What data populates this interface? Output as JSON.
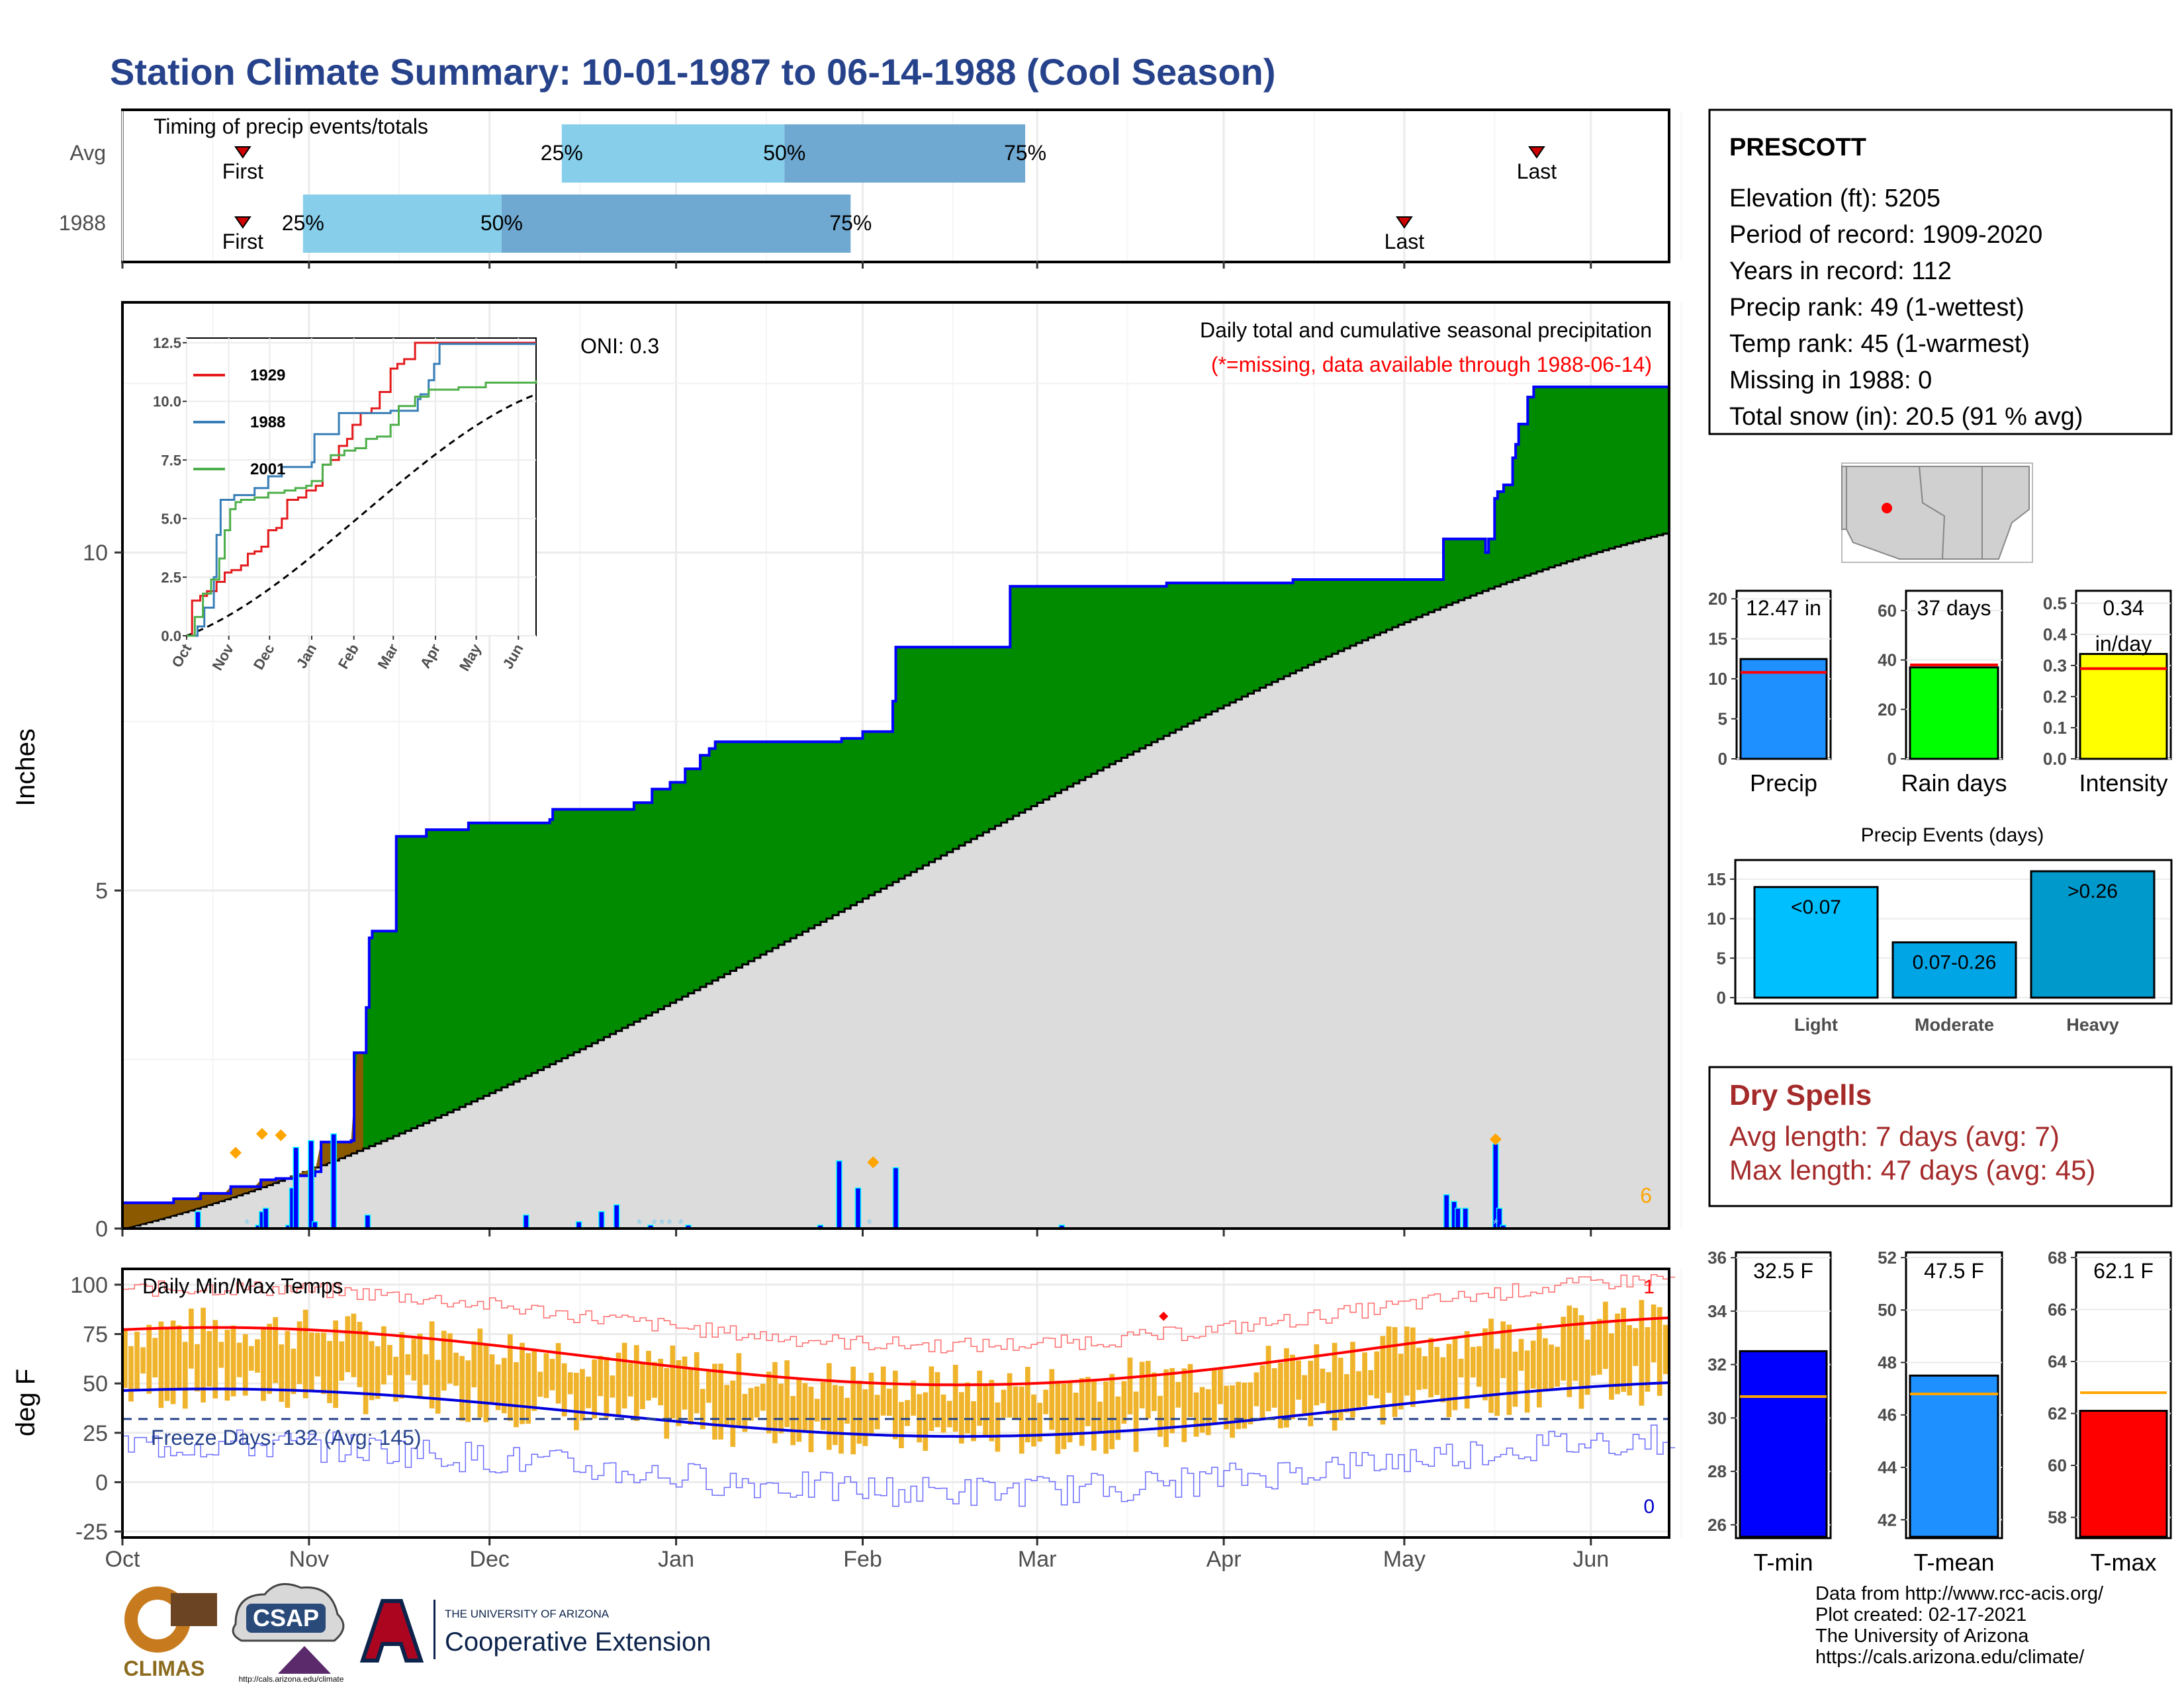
{
  "page": {
    "title": "Station Climate Summary: 10-01-1987 to 06-14-1988 (Cool Season)"
  },
  "colors": {
    "title": "#26428b",
    "green": "#008b00",
    "brown": "#8b5a00",
    "gray": "#dcdcdc",
    "blue": "#0000ff",
    "orange": "#ffa500",
    "gold": "#f0b42c",
    "red": "#ff0000",
    "darkred": "#a52a2a",
    "light_blue": "#87ceeb",
    "mid_blue": "#6fa8d0"
  },
  "month_labels": [
    "Oct",
    "Nov",
    "Dec",
    "Jan",
    "Feb",
    "Mar",
    "Apr",
    "May",
    "Jun"
  ],
  "timing": {
    "title": "Timing of precip events/totals",
    "rows": [
      {
        "label": "Avg",
        "first_label": "First",
        "last_label": "Last",
        "first_day": 20,
        "last_day": 235,
        "p25_day": 73,
        "p50_day": 110,
        "p75_day": 150,
        "p25_label": "25%",
        "p50_label": "50%",
        "p75_label": "75%"
      },
      {
        "label": "1988",
        "first_label": "First",
        "last_label": "Last",
        "first_day": 20,
        "last_day": 213,
        "p25_day": 30,
        "p50_day": 63,
        "p75_day": 121,
        "p25_label": "25%",
        "p50_label": "50%",
        "p75_label": "75%"
      }
    ]
  },
  "precip_panel": {
    "ylabel": "Inches",
    "yticks": [
      0,
      5,
      10
    ],
    "ymax": 13.7,
    "oni_label": "ONI: 0.3",
    "title": "Daily total and cumulative seasonal precipitation",
    "missing_note": "(*=missing, data available through 1988-06-14)",
    "missing_count": "6"
  },
  "inset": {
    "yticks": [
      "0.0",
      "2.5",
      "5.0",
      "7.5",
      "10.0",
      "12.5"
    ],
    "xticks": [
      "Oct",
      "Nov",
      "Dec",
      "Jan",
      "Feb",
      "Mar",
      "Apr",
      "May",
      "Jun"
    ],
    "legend": [
      {
        "name": "1929",
        "color": "#e41a1c"
      },
      {
        "name": "1988",
        "color": "#377eb8"
      },
      {
        "name": "2001",
        "color": "#4daf4a"
      }
    ]
  },
  "temp_panel": {
    "title": "Daily Min/Max Temps",
    "ylabel": "deg F",
    "yticks": [
      -25,
      0,
      25,
      50,
      75,
      100
    ],
    "freeze_label": "Freeze Days: 132 (Avg: 145)",
    "record_high_count": "1",
    "record_low_count": "0"
  },
  "station": {
    "name": "PRESCOTT",
    "lines": [
      "Elevation (ft): 5205",
      "Period of record: 1909-2020",
      "Years in record: 112",
      "Precip rank: 49 (1-wettest)",
      "Temp rank: 45 (1-warmest)",
      "Missing in 1988: 0",
      "Total snow (in): 20.5 (91 % avg)"
    ]
  },
  "summary_bars": [
    {
      "label": "Precip",
      "value_label": "12.47 in",
      "value": 12.47,
      "avg": 10.8,
      "ymax": 21,
      "yticks": [
        "0",
        "5",
        "10",
        "15",
        "20"
      ],
      "tickvals": [
        0,
        5,
        10,
        15,
        20
      ],
      "color": "#1e90ff"
    },
    {
      "label": "Rain days",
      "value_label": "37 days",
      "value": 37,
      "avg": 38,
      "ymax": 68,
      "yticks": [
        "0",
        "20",
        "40",
        "60"
      ],
      "tickvals": [
        0,
        20,
        40,
        60
      ],
      "color": "#00ff00"
    },
    {
      "label": "Intensity",
      "value_label": "0.34",
      "value_label2": "in/day",
      "value": 0.337,
      "avg": 0.29,
      "ymax": 0.54,
      "yticks": [
        "0.0",
        "0.1",
        "0.2",
        "0.3",
        "0.4",
        "0.5"
      ],
      "tickvals": [
        0,
        0.1,
        0.2,
        0.3,
        0.4,
        0.5
      ],
      "color": "#ffff00"
    }
  ],
  "precip_events": {
    "title": "Precip Events (days)",
    "yticks": [
      0,
      5,
      10,
      15
    ],
    "categories": [
      "Light",
      "Moderate",
      "Heavy"
    ],
    "values": [
      14,
      7,
      16
    ],
    "labels": [
      "<0.07",
      "0.07-0.26",
      ">0.26"
    ],
    "colors": [
      "#00bfff",
      "#00a5e6",
      "#0099cc"
    ]
  },
  "dry_spells": {
    "title": "Dry Spells",
    "avg_line": "Avg length: 7 days (avg: 7)",
    "max_line": "Max length: 47 days (avg: 45)"
  },
  "temp_bars": [
    {
      "label": "T-min",
      "value_label": "32.5 F",
      "value": 32.5,
      "avg": 30.8,
      "ymin": 25.5,
      "ymax": 36.2,
      "yticks": [
        "26",
        "28",
        "30",
        "32",
        "34",
        "36"
      ],
      "tickvals": [
        26,
        28,
        30,
        32,
        34,
        36
      ],
      "color": "#0000ff"
    },
    {
      "label": "T-mean",
      "value_label": "47.5 F",
      "value": 47.5,
      "avg": 46.8,
      "ymin": 41.3,
      "ymax": 52.2,
      "yticks": [
        "42",
        "44",
        "46",
        "48",
        "50",
        "52"
      ],
      "tickvals": [
        42,
        44,
        46,
        48,
        50,
        52
      ],
      "color": "#1e90ff"
    },
    {
      "label": "T-max",
      "value_label": "62.1 F",
      "value": 62.1,
      "avg": 62.8,
      "ymin": 57.2,
      "ymax": 68.2,
      "yticks": [
        "58",
        "60",
        "62",
        "64",
        "66",
        "68"
      ],
      "tickvals": [
        58,
        60,
        62,
        64,
        66,
        68
      ],
      "color": "#ff0000"
    }
  ],
  "footer": {
    "credits": [
      "Data from http://www.rcc-acis.org/",
      "Plot created: 02-17-2021",
      "The University of Arizona",
      "https://cals.arizona.edu/climate/"
    ],
    "climas": "CLIMAS",
    "csap": "CSAP",
    "csap_url": "http://cals.arizona.edu/climate",
    "ua_line1": "THE UNIVERSITY OF ARIZONA",
    "ua_line2": "Cooperative Extension"
  },
  "chart_data": {
    "type": "area",
    "title": "Daily total and cumulative seasonal precipitation",
    "ylabel": "Inches",
    "ylim": [
      0,
      13.7
    ],
    "x_months": [
      "Oct",
      "Nov",
      "Dec",
      "Jan",
      "Feb",
      "Mar",
      "Apr",
      "May",
      "Jun"
    ],
    "cumulative_1988_steps": [
      [
        0,
        0.38
      ],
      [
        13,
        0.44
      ],
      [
        20,
        0.52
      ],
      [
        22,
        0.52
      ],
      [
        27,
        0.52
      ],
      [
        28,
        0.62
      ],
      [
        29,
        0.62
      ],
      [
        33,
        0.62
      ],
      [
        35,
        0.62
      ],
      [
        36,
        0.72
      ],
      [
        37,
        0.72
      ],
      [
        39,
        0.72
      ],
      [
        40,
        0.74
      ],
      [
        45,
        0.74
      ],
      [
        46,
        0.78
      ],
      [
        50,
        0.78
      ],
      [
        51,
        0.84
      ],
      [
        52,
        1.28
      ],
      [
        52.5,
        1.28
      ],
      [
        56,
        1.28
      ],
      [
        57,
        1.28
      ],
      [
        58,
        1.28
      ],
      [
        60,
        1.3
      ],
      [
        61,
        2.6
      ],
      [
        62,
        2.6
      ],
      [
        64,
        3.27
      ],
      [
        65,
        4.3
      ],
      [
        66,
        4.4
      ],
      [
        67,
        4.4
      ],
      [
        70,
        4.4
      ],
      [
        71,
        4.4
      ],
      [
        72,
        5.8
      ],
      [
        73,
        5.8
      ],
      [
        78,
        5.8
      ],
      [
        80,
        5.9
      ],
      [
        82,
        5.9
      ],
      [
        84,
        5.9
      ],
      [
        85,
        5.9
      ],
      [
        91,
        6.0
      ],
      [
        110,
        6.0
      ],
      [
        113,
        6.05
      ],
      [
        114,
        6.2
      ],
      [
        135,
        6.3
      ],
      [
        136,
        6.3
      ],
      [
        140,
        6.5
      ],
      [
        143,
        6.5
      ],
      [
        145,
        6.6
      ],
      [
        147,
        6.6
      ],
      [
        149,
        6.8
      ],
      [
        151,
        6.8
      ],
      [
        153,
        7.0
      ],
      [
        155,
        7.1
      ],
      [
        157,
        7.2
      ],
      [
        160,
        7.2
      ],
      [
        170,
        7.2
      ],
      [
        180,
        7.2
      ],
      [
        190,
        7.25
      ],
      [
        194,
        7.25
      ],
      [
        196,
        7.35
      ],
      [
        198,
        7.35
      ],
      [
        200,
        7.35
      ],
      [
        202,
        7.35
      ],
      [
        204,
        7.8
      ],
      [
        205,
        8.6
      ],
      [
        214,
        8.6
      ],
      [
        219,
        8.6
      ],
      [
        224,
        8.6
      ],
      [
        234,
        8.6
      ],
      [
        235,
        9.5
      ],
      [
        250,
        9.5
      ],
      [
        260,
        9.5
      ],
      [
        270,
        9.5
      ],
      [
        276,
        9.55
      ],
      [
        290,
        9.55
      ],
      [
        307,
        9.55
      ],
      [
        310,
        9.6
      ],
      [
        329,
        9.6
      ],
      [
        344,
        9.6
      ],
      [
        349,
        9.6
      ],
      [
        350,
        10.2
      ],
      [
        354,
        10.2
      ],
      [
        358,
        10.2
      ],
      [
        360,
        10.2
      ],
      [
        361,
        10.0
      ],
      [
        362,
        10.2
      ],
      [
        363,
        10.8
      ],
      [
        364,
        10.9
      ],
      [
        366,
        11.0
      ],
      [
        367,
        11.0
      ],
      [
        368,
        11.4
      ],
      [
        369,
        11.6
      ],
      [
        370,
        11.9
      ],
      [
        372,
        12.3
      ],
      [
        374,
        12.45
      ],
      [
        410,
        12.45
      ]
    ],
    "cumulative_avg_endpoints": [
      [
        0,
        0.0
      ],
      [
        258,
        10.3
      ]
    ],
    "daily_events": [
      {
        "day": 20,
        "inches": 0.25
      },
      {
        "day": 36,
        "inches": 0.05
      },
      {
        "day": 37,
        "inches": 0.25
      },
      {
        "day": 38,
        "inches": 0.3
      },
      {
        "day": 44,
        "inches": 0.05
      },
      {
        "day": 45,
        "inches": 0.6
      },
      {
        "day": 46,
        "inches": 1.2
      },
      {
        "day": 50,
        "inches": 1.3
      },
      {
        "day": 51,
        "inches": 0.1
      },
      {
        "day": 56,
        "inches": 1.4
      },
      {
        "day": 65,
        "inches": 0.2
      },
      {
        "day": 107,
        "inches": 0.2
      },
      {
        "day": 121,
        "inches": 0.1
      },
      {
        "day": 127,
        "inches": 0.25
      },
      {
        "day": 131,
        "inches": 0.35
      },
      {
        "day": 140,
        "inches": 0.05
      },
      {
        "day": 150,
        "inches": 0.05
      },
      {
        "day": 185,
        "inches": 0.05
      },
      {
        "day": 190,
        "inches": 1.0
      },
      {
        "day": 195,
        "inches": 0.6
      },
      {
        "day": 205,
        "inches": 0.9
      },
      {
        "day": 249,
        "inches": 0.05
      },
      {
        "day": 351,
        "inches": 0.5
      },
      {
        "day": 353,
        "inches": 0.4
      },
      {
        "day": 354,
        "inches": 0.3
      },
      {
        "day": 356,
        "inches": 0.3
      },
      {
        "day": 364,
        "inches": 1.25
      },
      {
        "day": 365,
        "inches": 0.3
      },
      {
        "day": 366,
        "inches": 0.05
      }
    ]
  }
}
